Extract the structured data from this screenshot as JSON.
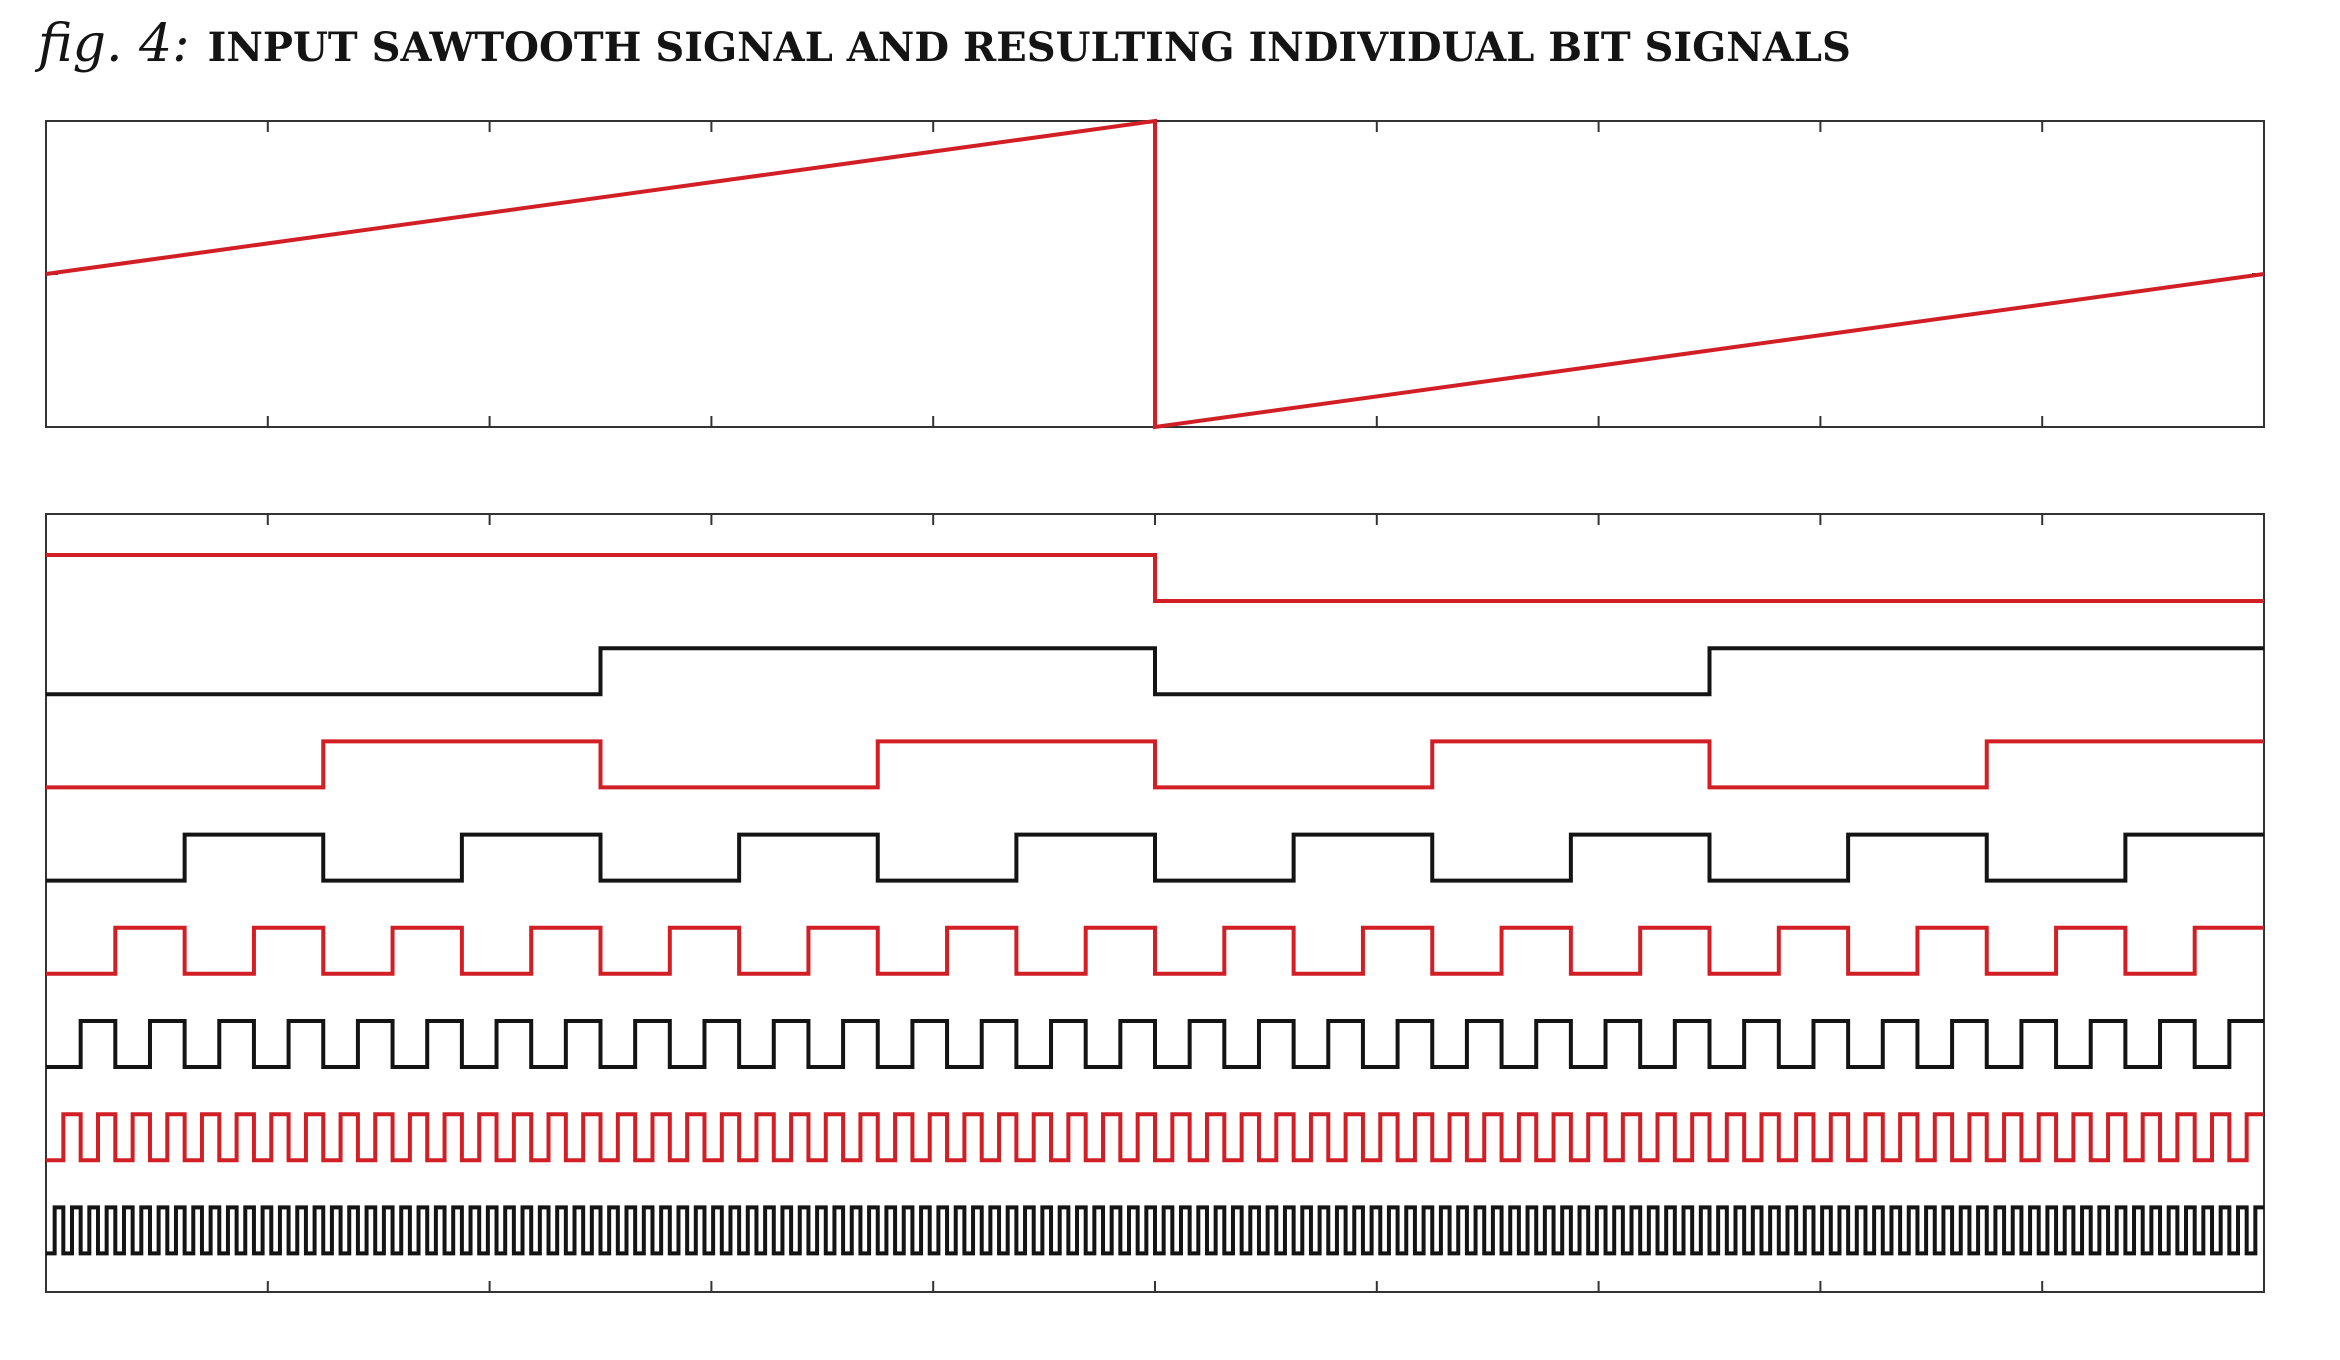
{
  "figure": {
    "label": "fig. 4:",
    "title": "INPUT SAWTOOTH SIGNAL AND RESULTING INDIVIDUAL BIT SIGNALS"
  },
  "colors": {
    "red": "#d21f26",
    "black": "#141414",
    "frame": "#333333"
  },
  "chart_data": [
    {
      "type": "line",
      "title": "",
      "xlabel": "",
      "ylabel": "",
      "xlim": [
        0,
        1
      ],
      "ylim": [
        -5,
        5
      ],
      "x_ticks": [
        "0",
        "0.1",
        "0.2",
        "0.3",
        "0.4",
        "0.5",
        "0.6",
        "0.7",
        "0.8",
        "0.9",
        "1"
      ],
      "y_ticks": [
        "5",
        "0",
        "-5"
      ],
      "y_axis_side": "right",
      "grid": false,
      "series": [
        {
          "color": "#d21f26",
          "x": [
            0,
            0.5,
            0.5,
            1
          ],
          "y": [
            0,
            5,
            -5,
            0
          ]
        }
      ]
    },
    {
      "type": "line",
      "title": "",
      "xlabel": "",
      "ylabel": "",
      "xlim": [
        0,
        1
      ],
      "x_ticks": [
        "0",
        "0.1",
        "0.2",
        "0.3",
        "0.4",
        "0.5",
        "0.6",
        "0.7",
        "0.8",
        "0.9",
        "1"
      ],
      "y_ticks": [
        "7",
        "6",
        "5",
        "4",
        "3",
        "2",
        "1",
        "0"
      ],
      "y_axis_side": "right",
      "grid": false,
      "signal": "individual bits of the sawtooth sample value (two's complement, 8 bits)",
      "series": [
        {
          "bit": 7,
          "color": "#d21f26",
          "cycles": 1,
          "high_in_first_half": true
        },
        {
          "bit": 6,
          "color": "#141414",
          "cycles": 2,
          "high_in_first_half": false
        },
        {
          "bit": 5,
          "color": "#d21f26",
          "cycles": 4,
          "high_in_first_half": false
        },
        {
          "bit": 4,
          "color": "#141414",
          "cycles": 8,
          "high_in_first_half": false
        },
        {
          "bit": 3,
          "color": "#d21f26",
          "cycles": 16,
          "high_in_first_half": false
        },
        {
          "bit": 2,
          "color": "#141414",
          "cycles": 32,
          "high_in_first_half": false
        },
        {
          "bit": 1,
          "color": "#d21f26",
          "cycles": 64,
          "high_in_first_half": false
        },
        {
          "bit": 0,
          "color": "#141414",
          "cycles": 128,
          "high_in_first_half": false
        }
      ]
    }
  ]
}
